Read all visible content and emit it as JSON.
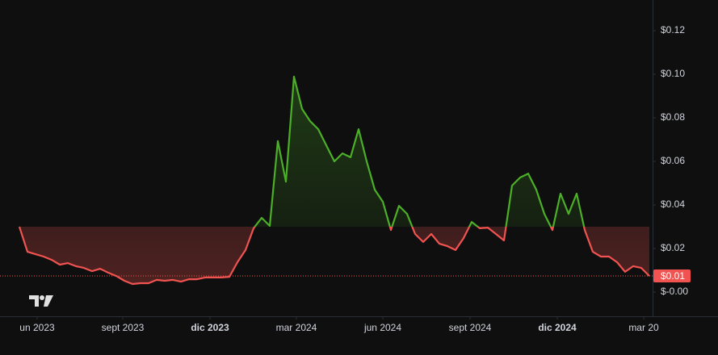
{
  "chart_data": {
    "type": "baseline",
    "series": [
      {
        "name": "price",
        "values": [
          0.03,
          0.0185,
          0.0174,
          0.0163,
          0.0148,
          0.0126,
          0.0133,
          0.0119,
          0.0111,
          0.0096,
          0.0107,
          0.0089,
          0.0074,
          0.0052,
          0.0037,
          0.0041,
          0.0041,
          0.0056,
          0.0052,
          0.0056,
          0.0048,
          0.0059,
          0.0059,
          0.0067,
          0.0067,
          0.0067,
          0.007,
          0.0137,
          0.0193,
          0.0293,
          0.0341,
          0.0304,
          0.0693,
          0.0507,
          0.0989,
          0.0841,
          0.0785,
          0.0748,
          0.0674,
          0.06,
          0.0637,
          0.0619,
          0.0748,
          0.06,
          0.047,
          0.0415,
          0.0285,
          0.0396,
          0.0359,
          0.0267,
          0.023,
          0.0267,
          0.0222,
          0.0211,
          0.0193,
          0.0248,
          0.0322,
          0.0293,
          0.0296,
          0.0267,
          0.0237,
          0.0489,
          0.0526,
          0.0544,
          0.047,
          0.0359,
          0.0285,
          0.0452,
          0.0359,
          0.0452,
          0.0285,
          0.0185,
          0.0163,
          0.0163,
          0.0137,
          0.0093,
          0.0119,
          0.0111,
          0.0074
        ]
      }
    ],
    "baseline": 0.03,
    "up_color": "#4caf28",
    "down_color": "#f05350",
    "price_label": "$0.01",
    "xlim": [
      -2.4,
      78.4
    ],
    "xticks": [
      {
        "value": 2.2,
        "label": "un 2023"
      },
      {
        "value": 12.8,
        "label": "sept 2023"
      },
      {
        "value": 23.6,
        "label": "dic 2023"
      },
      {
        "value": 34.3,
        "label": "mar 2024"
      },
      {
        "value": 45,
        "label": "jun 2024"
      },
      {
        "value": 55.8,
        "label": "sept 2024"
      },
      {
        "value": 66.6,
        "label": "dic 2024"
      },
      {
        "value": 77.3,
        "label": "mar 20"
      }
    ],
    "ylim": [
      -0.0111,
      0.1341
    ],
    "yticks": [
      {
        "value": 0.12,
        "label": "$0.12"
      },
      {
        "value": 0.1,
        "label": "$0.10"
      },
      {
        "value": 0.08,
        "label": "$0.08"
      },
      {
        "value": 0.06,
        "label": "$0.06"
      },
      {
        "value": 0.04,
        "label": "$0.04"
      },
      {
        "value": 0.02,
        "label": "$0.02"
      },
      {
        "value": 0,
        "label": "$-0.00"
      }
    ]
  }
}
